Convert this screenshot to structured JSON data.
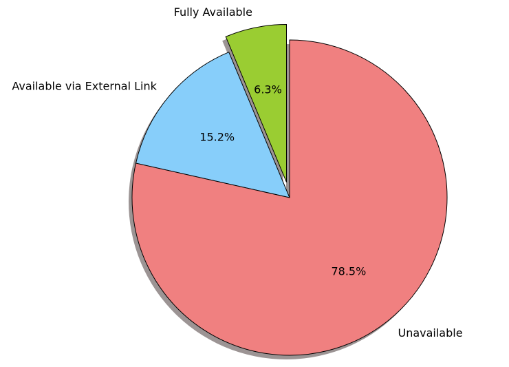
{
  "chart_data": {
    "type": "pie",
    "title": "",
    "slices": [
      {
        "label": "Fully Available",
        "value": 6.3,
        "pct_label": "6.3%",
        "color": "#9acd32",
        "exploded": true
      },
      {
        "label": "Available via External Link",
        "value": 15.2,
        "pct_label": "15.2%",
        "color": "#87cefa",
        "exploded": false
      },
      {
        "label": "Unavailable",
        "value": 78.5,
        "pct_label": "78.5%",
        "color": "#f08080",
        "exploded": false
      }
    ],
    "start_angle": "top",
    "direction": "counterclockwise",
    "shadow": true
  }
}
